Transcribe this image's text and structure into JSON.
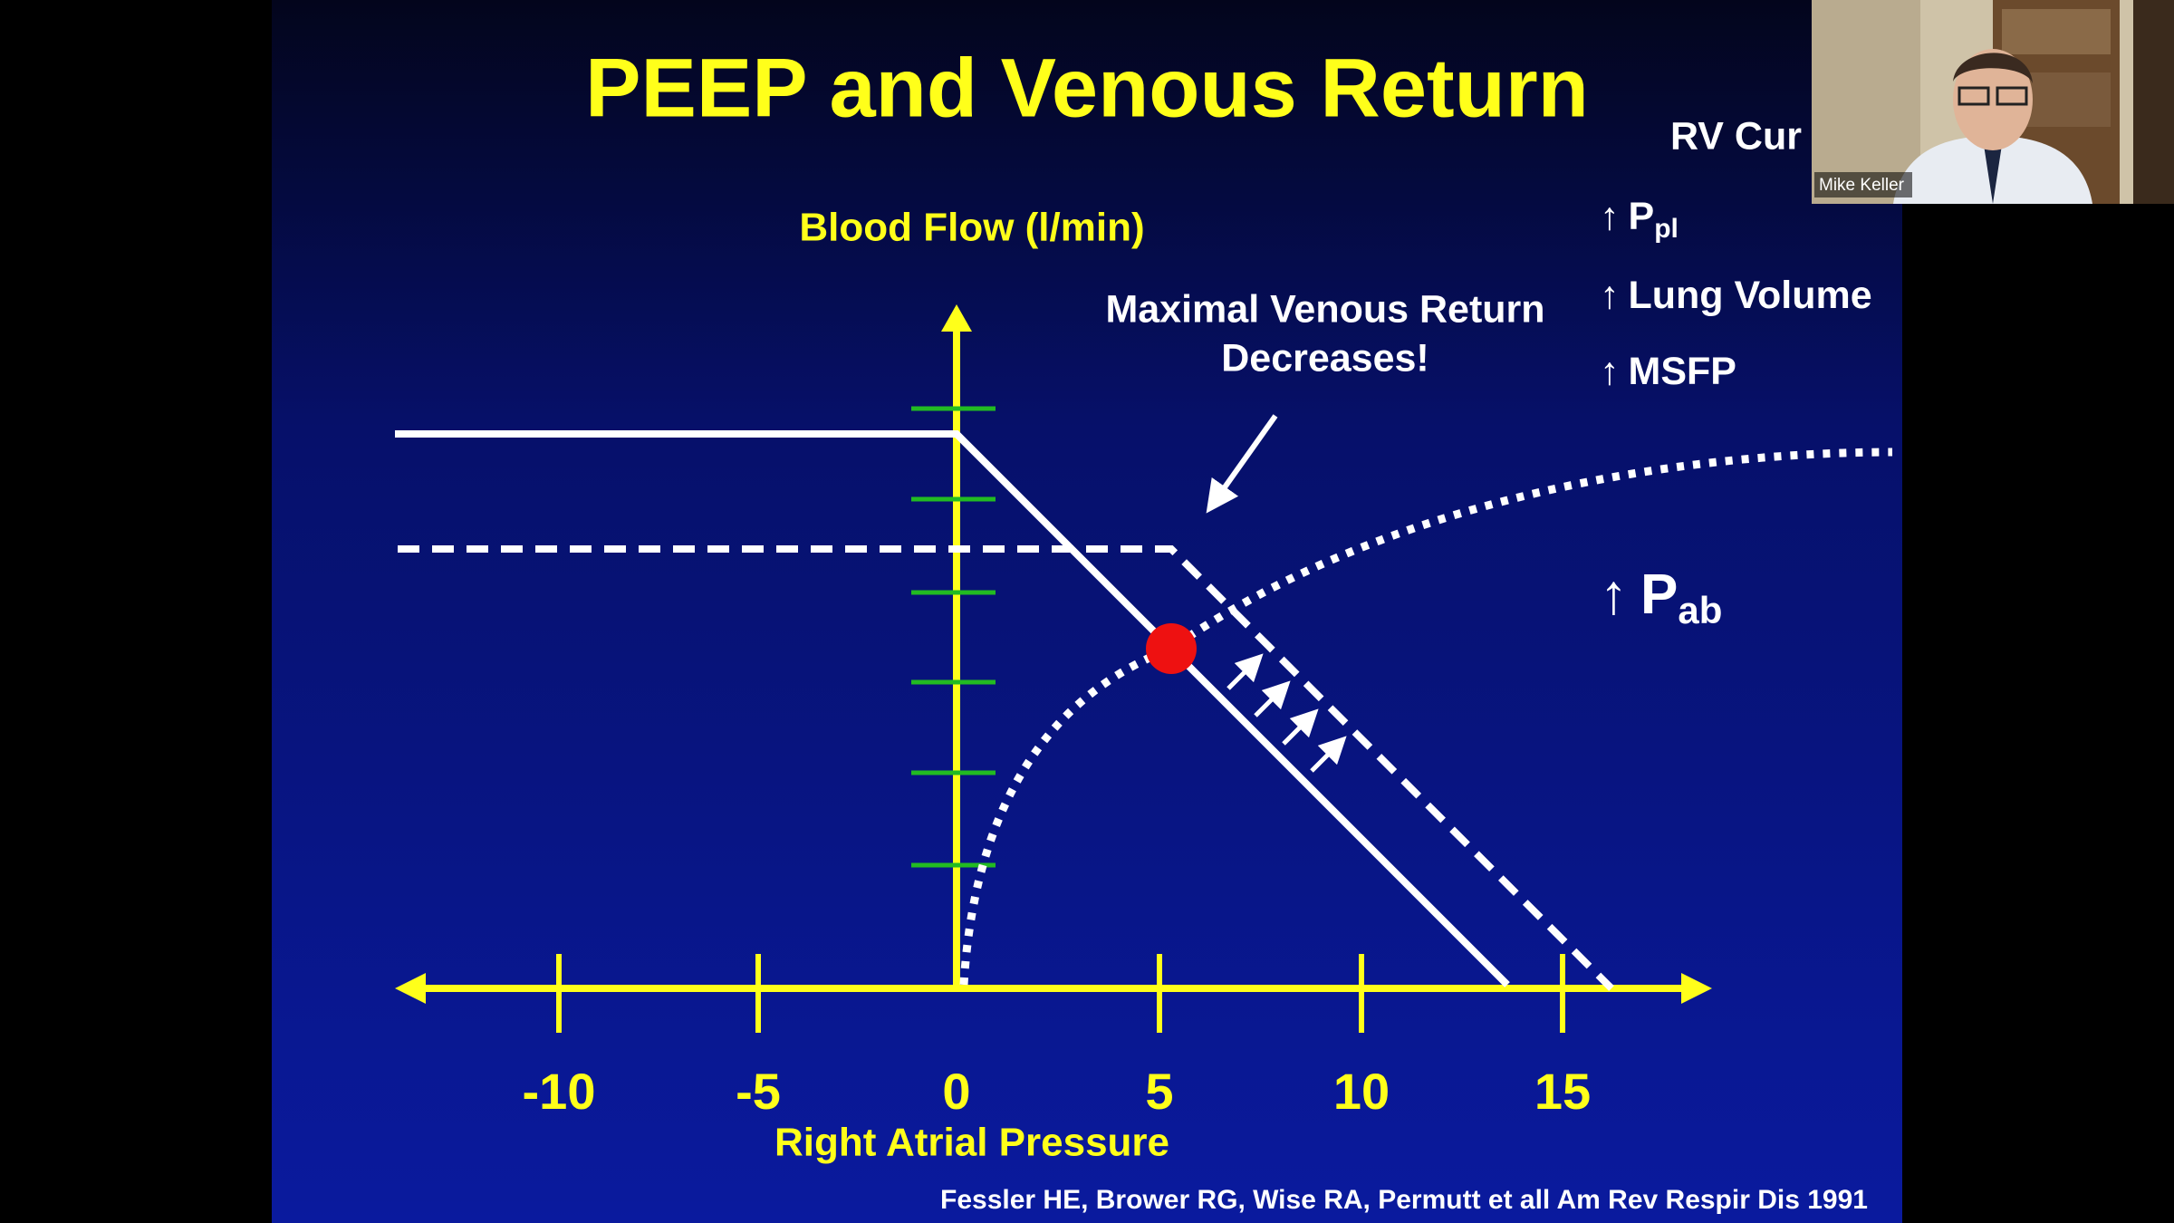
{
  "slide": {
    "title": "PEEP and Venous Return",
    "y_axis_label": "Blood Flow (l/min)",
    "x_axis_label": "Right Atrial Pressure",
    "x_tick_labels": [
      "-10",
      "-5",
      "0",
      "5",
      "10",
      "15"
    ],
    "annotation": [
      "Maximal Venous Return",
      "Decreases!"
    ],
    "side_heading": "RV Cur",
    "factors": [
      {
        "arrow": "↑",
        "text": "P",
        "sub": "pl"
      },
      {
        "arrow": "↑",
        "text": "Lung Volume"
      },
      {
        "arrow": "↑",
        "text": "MSFP"
      }
    ],
    "abdominal": {
      "arrow": "↑",
      "text": "P",
      "sub": "ab"
    },
    "citation": "Fessler HE, Brower RG, Wise RA, Permutt et all Am Rev Respir Dis 1991"
  },
  "participant": {
    "name": "Mike Keller"
  }
}
